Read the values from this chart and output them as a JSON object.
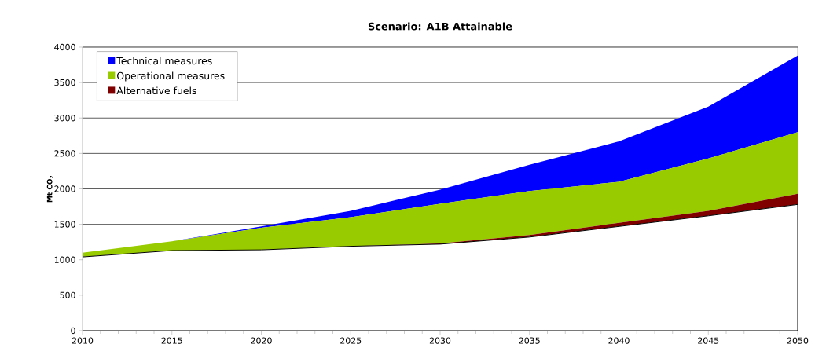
{
  "chart_data": {
    "type": "area",
    "title": "Scenario: A1B Attainable",
    "ylabel": "Mt CO$_{2}$",
    "x": [
      2010,
      2015,
      2020,
      2025,
      2030,
      2035,
      2040,
      2045,
      2050
    ],
    "series": [
      {
        "color": "#ffffff",
        "values": [
          1040,
          1130,
          1140,
          1190,
          1220,
          1320,
          1470,
          1620,
          1780
        ]
      },
      {
        "name": "Alternative fuels",
        "color": "#800000",
        "values": [
          0,
          0,
          0,
          0,
          10,
          30,
          50,
          70,
          150
        ]
      },
      {
        "name": "Operational measures",
        "color": "#99cc00",
        "values": [
          60,
          130,
          310,
          410,
          560,
          620,
          580,
          740,
          870
        ]
      },
      {
        "name": "Technical measures",
        "color": "#0000ff",
        "values": [
          0,
          0,
          20,
          90,
          200,
          370,
          570,
          730,
          1080
        ]
      }
    ],
    "stacked": true,
    "xlim": [
      2010,
      2050
    ],
    "ylim": [
      0,
      4000
    ],
    "xticks": [
      2010,
      2015,
      2020,
      2025,
      2030,
      2035,
      2040,
      2045,
      2050
    ],
    "yticks": [
      0,
      500,
      1000,
      1500,
      2000,
      2500,
      3000,
      3500,
      4000
    ],
    "grid": "y",
    "legend": "top left"
  }
}
